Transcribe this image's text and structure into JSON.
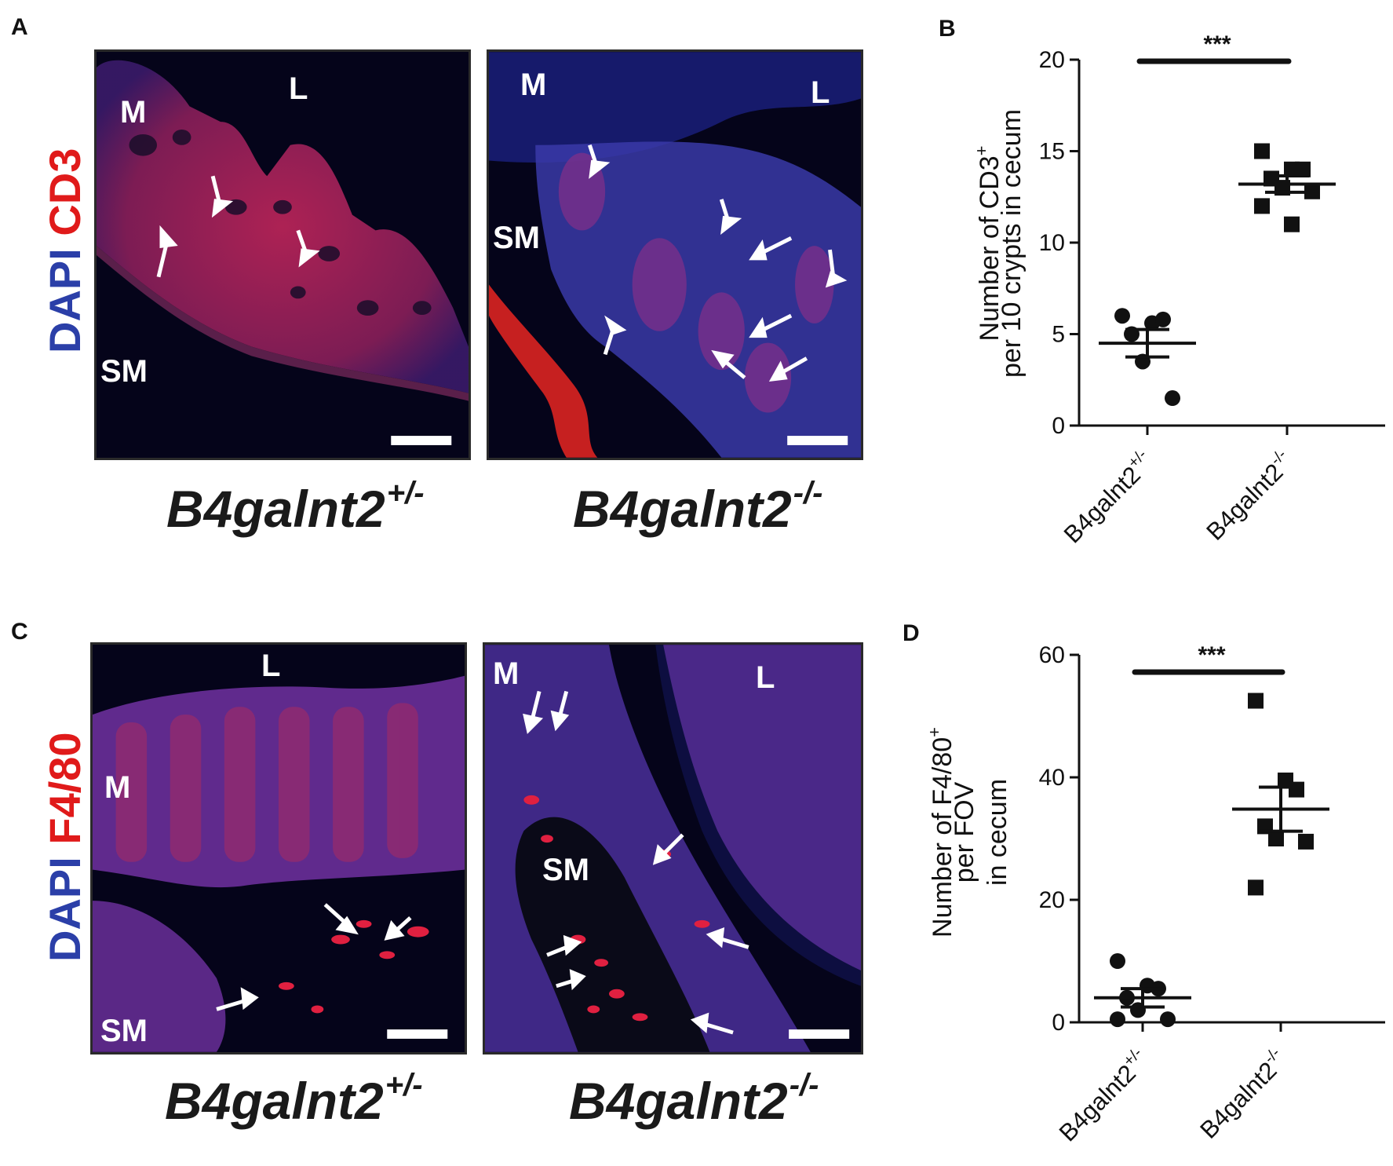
{
  "panels": {
    "A": {
      "label": "A",
      "stain_dapi": "DAPI",
      "stain_marker": "CD3",
      "left_image": {
        "labels": {
          "m": "M",
          "l": "L",
          "sm": "SM"
        }
      },
      "right_image": {
        "labels": {
          "m": "M",
          "l": "L",
          "sm": "SM"
        }
      },
      "left_genotype": {
        "base": "B4galnt2",
        "sup": "+/-"
      },
      "right_genotype": {
        "base": "B4galnt2",
        "sup": "-/-"
      }
    },
    "B": {
      "label": "B"
    },
    "C": {
      "label": "C",
      "stain_dapi": "DAPI",
      "stain_marker": "F4/80",
      "left_image": {
        "labels": {
          "m": "M",
          "l": "L",
          "sm": "SM"
        }
      },
      "right_image": {
        "labels": {
          "m": "M",
          "l": "L",
          "sm": "SM"
        }
      },
      "left_genotype": {
        "base": "B4galnt2",
        "sup": "+/-"
      },
      "right_genotype": {
        "base": "B4galnt2",
        "sup": "-/-"
      }
    },
    "D": {
      "label": "D"
    }
  },
  "chart_data": [
    {
      "panel": "B",
      "type": "scatter",
      "ylabel_lines": [
        "Number of CD3",
        "per 10 crypts in cecum"
      ],
      "ylabel_sup": "+",
      "categories": [
        "B4galnt2",
        "B4galnt2"
      ],
      "category_sups": [
        "+/-",
        "-/-"
      ],
      "ylim": [
        0,
        20
      ],
      "yticks": [
        0,
        5,
        10,
        15,
        20
      ],
      "significance": "***",
      "series": [
        {
          "marker": "circle",
          "values": [
            6,
            5.6,
            5.8,
            5,
            3.5,
            1.5
          ],
          "mean": 4.5,
          "sem": 0.75
        },
        {
          "marker": "square",
          "values": [
            15,
            14,
            14,
            13.5,
            13,
            12.8,
            12,
            11
          ],
          "mean": 13.2,
          "sem": 0.45
        }
      ]
    },
    {
      "panel": "D",
      "type": "scatter",
      "ylabel_lines": [
        "Number of F4/80",
        "per FOV",
        "in cecum"
      ],
      "ylabel_sup": "+",
      "categories": [
        "B4galnt2",
        "B4galnt2"
      ],
      "category_sups": [
        "+/-",
        "-/-"
      ],
      "ylim": [
        0,
        60
      ],
      "yticks": [
        0,
        20,
        40,
        60
      ],
      "significance": "***",
      "series": [
        {
          "marker": "circle",
          "values": [
            10,
            6,
            5.5,
            4,
            2,
            0.5,
            0.5
          ],
          "mean": 4.0,
          "sem": 1.5
        },
        {
          "marker": "square",
          "values": [
            52.5,
            39.5,
            38,
            32,
            30,
            29.5,
            22
          ],
          "mean": 34.8,
          "sem": 3.6
        }
      ]
    }
  ]
}
